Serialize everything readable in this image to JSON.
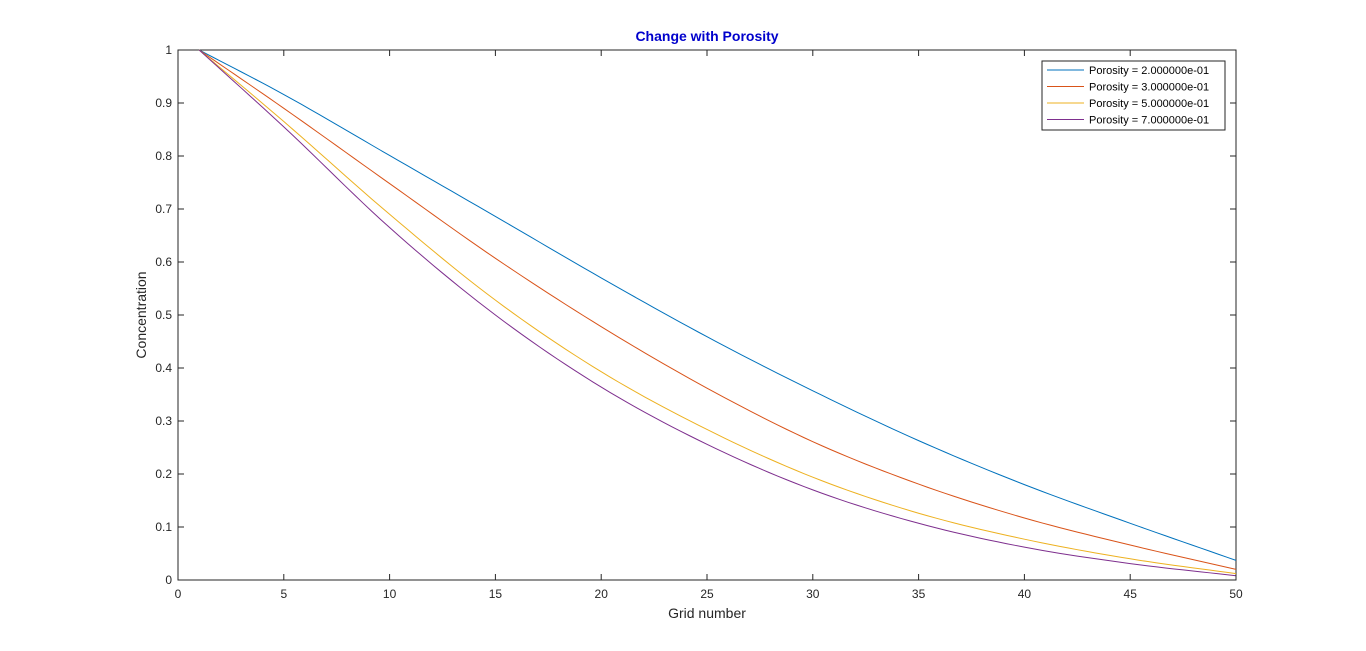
{
  "chart_data": {
    "type": "line",
    "title": "Change with Porosity",
    "title_color": "#0000CC",
    "xlabel": "Grid number",
    "ylabel": "Concentration",
    "xlim": [
      0,
      50
    ],
    "ylim": [
      0,
      1
    ],
    "xticks": [
      0,
      5,
      10,
      15,
      20,
      25,
      30,
      35,
      40,
      45,
      50
    ],
    "yticks": [
      0,
      0.1,
      0.2,
      0.3,
      0.4,
      0.5,
      0.6,
      0.7,
      0.8,
      0.9,
      1
    ],
    "ytick_labels": [
      "0",
      "0.1",
      "0.2",
      "0.3",
      "0.4",
      "0.5",
      "0.6",
      "0.7",
      "0.8",
      "0.9",
      "1"
    ],
    "grid": false,
    "legend_position": "top-right",
    "x": [
      1,
      5,
      10,
      15,
      20,
      25,
      30,
      35,
      40,
      45,
      50
    ],
    "series": [
      {
        "name": "Porosity = 2.000000e-01",
        "color": "#0072BD",
        "values": [
          1.0,
          0.916,
          0.801,
          0.686,
          0.57,
          0.459,
          0.357,
          0.263,
          0.18,
          0.107,
          0.037
        ]
      },
      {
        "name": "Porosity = 3.000000e-01",
        "color": "#D95319",
        "values": [
          1.0,
          0.89,
          0.748,
          0.607,
          0.478,
          0.362,
          0.261,
          0.181,
          0.117,
          0.066,
          0.02
        ]
      },
      {
        "name": "Porosity = 5.000000e-01",
        "color": "#EDB120",
        "values": [
          1.0,
          0.865,
          0.69,
          0.528,
          0.393,
          0.284,
          0.194,
          0.126,
          0.077,
          0.04,
          0.012
        ]
      },
      {
        "name": "Porosity = 7.000000e-01",
        "color": "#7E2F8E",
        "values": [
          1.0,
          0.855,
          0.665,
          0.5,
          0.364,
          0.256,
          0.17,
          0.107,
          0.062,
          0.031,
          0.008
        ]
      }
    ]
  }
}
